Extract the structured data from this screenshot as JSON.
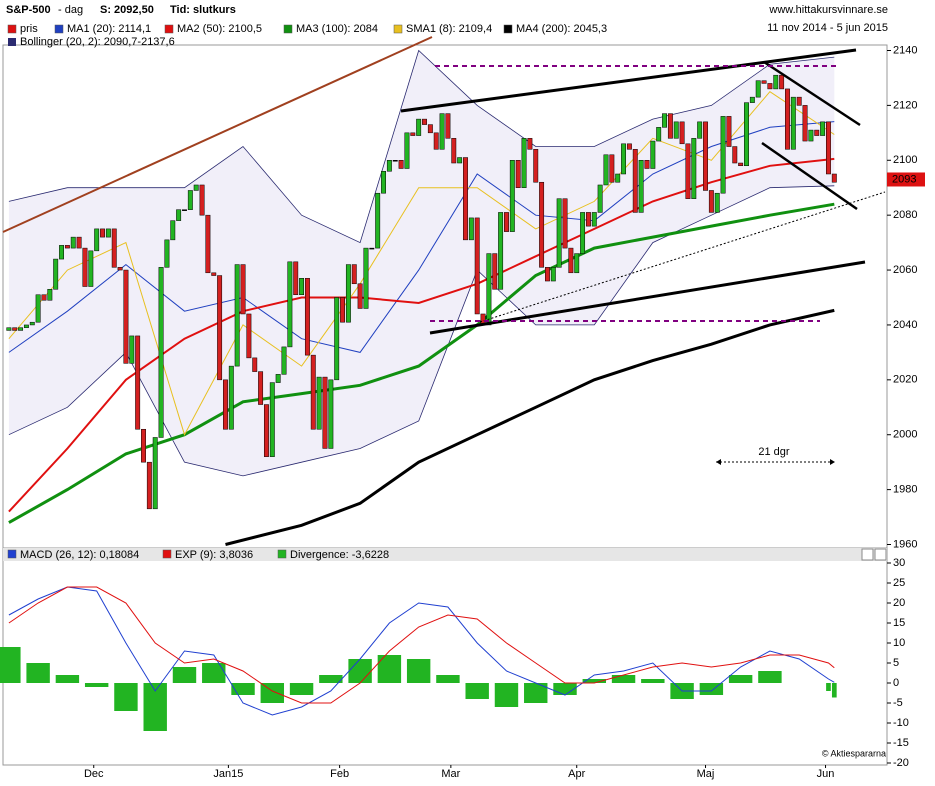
{
  "chart_data": [
    {
      "type": "candlestick",
      "title": "S&P-500",
      "interval": "- dag",
      "last_close": "S: 2092,50",
      "price_type": "Tid: slutkurs",
      "source": "www.hittakursvinnare.se",
      "date_range": "11 nov 2014 - 5 jun 2015",
      "xlim": [
        -1,
        150
      ],
      "ylim": [
        1958,
        2142
      ],
      "yticks": [
        1960,
        1980,
        2000,
        2020,
        2040,
        2060,
        2080,
        2100,
        2120,
        2140
      ],
      "last_value": 2093,
      "last_value_color": "#dd1111",
      "candles": {
        "name": "pris",
        "color": "#dd1111",
        "up_color": "#22b422",
        "down_color": "#d42020",
        "open": [
          2038,
          2039,
          2038,
          2039,
          2040,
          2041,
          2051,
          2049,
          2053,
          2064,
          2069,
          2068,
          2072,
          2068,
          2054,
          2067,
          2075,
          2072,
          2075,
          2061,
          2060,
          2026,
          2036,
          2002,
          1990,
          1973,
          1999,
          2061,
          2071,
          2078,
          2082,
          2082,
          2089,
          2091,
          2080,
          2059,
          2058,
          2020,
          2002,
          2025,
          2062,
          2044,
          2028,
          2023,
          2011,
          1992,
          2019,
          2022,
          2032,
          2063,
          2051,
          2057,
          2029,
          2002,
          2021,
          1995,
          2020,
          2050,
          2041,
          2062,
          2055,
          2046,
          2068,
          2068,
          2088,
          2096,
          2100,
          2100,
          2097,
          2110,
          2109,
          2115,
          2113,
          2110,
          2104,
          2117,
          2108,
          2099,
          2101,
          2071,
          2079,
          2044,
          2040,
          2066,
          2053,
          2081,
          2074,
          2100,
          2090,
          2108,
          2104,
          2092,
          2061,
          2056,
          2061,
          2086,
          2068,
          2059,
          2066,
          2081,
          2076,
          2081,
          2091,
          2102,
          2092,
          2095,
          2106,
          2104,
          2081,
          2100,
          2097,
          2107,
          2112,
          2117,
          2108,
          2114,
          2106,
          2086,
          2108,
          2114,
          2089,
          2081,
          2088,
          2116,
          2105,
          2099,
          2098,
          2121,
          2123,
          2129,
          2128,
          2126,
          2131,
          2126,
          2104,
          2123,
          2120,
          2107,
          2111,
          2109,
          2114,
          2095
        ],
        "close": [
          2039,
          2038,
          2039,
          2040,
          2041,
          2051,
          2049,
          2053,
          2064,
          2069,
          2068,
          2072,
          2068,
          2054,
          2067,
          2075,
          2072,
          2075,
          2061,
          2060,
          2026,
          2036,
          2002,
          1990,
          1973,
          1999,
          2061,
          2071,
          2078,
          2082,
          2082,
          2089,
          2091,
          2080,
          2059,
          2058,
          2020,
          2002,
          2025,
          2062,
          2044,
          2028,
          2023,
          2011,
          1992,
          2019,
          2022,
          2032,
          2063,
          2051,
          2057,
          2029,
          2002,
          2021,
          1995,
          2020,
          2050,
          2041,
          2062,
          2055,
          2046,
          2068,
          2068,
          2088,
          2096,
          2100,
          2100,
          2097,
          2110,
          2109,
          2115,
          2113,
          2110,
          2104,
          2117,
          2108,
          2099,
          2101,
          2071,
          2079,
          2044,
          2040,
          2066,
          2053,
          2081,
          2074,
          2100,
          2090,
          2108,
          2104,
          2092,
          2061,
          2056,
          2061,
          2086,
          2068,
          2059,
          2066,
          2081,
          2076,
          2081,
          2091,
          2102,
          2092,
          2095,
          2106,
          2104,
          2081,
          2100,
          2097,
          2107,
          2112,
          2117,
          2108,
          2114,
          2106,
          2086,
          2108,
          2114,
          2089,
          2081,
          2088,
          2116,
          2105,
          2099,
          2098,
          2121,
          2123,
          2129,
          2128,
          2126,
          2131,
          2126,
          2104,
          2123,
          2120,
          2107,
          2111,
          2109,
          2114,
          2095,
          2092
        ]
      },
      "bollinger": {
        "name": "Bollinger (20, 2): 2090,7-2137,6",
        "color": "#2a2a70",
        "fill": "#f1eff9",
        "x": [
          0,
          10,
          20,
          30,
          40,
          50,
          60,
          70,
          80,
          90,
          100,
          110,
          120,
          130,
          141
        ],
        "upper": [
          2085,
          2090,
          2090,
          2090,
          2105,
          2080,
          2070,
          2140,
          2120,
          2105,
          2105,
          2115,
          2120,
          2135,
          2137.6
        ],
        "lower": [
          2000,
          2010,
          2030,
          1990,
          1985,
          1990,
          1995,
          2005,
          2060,
          2040,
          2040,
          2070,
          2080,
          2090,
          2090.7
        ]
      },
      "series": [
        {
          "name": "MA1 (20): 2114,1",
          "color": "#2040c0",
          "width": 1,
          "x": [
            0,
            10,
            20,
            30,
            40,
            50,
            60,
            70,
            80,
            90,
            100,
            110,
            120,
            130,
            141
          ],
          "values": [
            2030,
            2045,
            2062,
            2045,
            2050,
            2035,
            2030,
            2060,
            2095,
            2080,
            2078,
            2095,
            2105,
            2112,
            2114.1
          ]
        },
        {
          "name": "MA2 (50): 2100,5",
          "color": "#e01010",
          "width": 2,
          "x": [
            0,
            10,
            20,
            30,
            40,
            50,
            60,
            70,
            80,
            90,
            100,
            110,
            120,
            130,
            141
          ],
          "values": [
            1972,
            1995,
            2020,
            2035,
            2045,
            2050,
            2050,
            2048,
            2055,
            2065,
            2075,
            2085,
            2092,
            2098,
            2100.5
          ]
        },
        {
          "name": "MA3 (100): 2084",
          "color": "#109010",
          "width": 3,
          "x": [
            0,
            10,
            20,
            30,
            40,
            50,
            60,
            70,
            80,
            90,
            100,
            110,
            120,
            130,
            141
          ],
          "values": [
            1968,
            1980,
            1993,
            2000,
            2012,
            2015,
            2018,
            2025,
            2040,
            2058,
            2068,
            2072,
            2076,
            2080,
            2084
          ]
        },
        {
          "name": "SMA1 (8): 2109,4",
          "color": "#e8c020",
          "width": 1,
          "x": [
            0,
            10,
            20,
            30,
            40,
            50,
            60,
            70,
            80,
            90,
            100,
            110,
            120,
            130,
            141
          ],
          "values": [
            2035,
            2060,
            2070,
            2000,
            2040,
            2025,
            2055,
            2090,
            2090,
            2075,
            2085,
            2108,
            2100,
            2125,
            2109.4
          ]
        },
        {
          "name": "MA4 (200): 2045,3",
          "color": "#000000",
          "width": 3,
          "x": [
            37,
            50,
            60,
            70,
            80,
            90,
            100,
            110,
            120,
            130,
            141
          ],
          "values": [
            1960,
            1967,
            1975,
            1990,
            2000,
            2010,
            2020,
            2027,
            2033,
            2040,
            2045.3
          ]
        }
      ],
      "annotation": "21 dgr"
    },
    {
      "type": "macd",
      "xlim": [
        -1,
        150
      ],
      "ylim": [
        -20,
        30
      ],
      "yticks": [
        -20,
        -15,
        -10,
        -5,
        0,
        5,
        10,
        15,
        20,
        25,
        30
      ],
      "xticks": [
        {
          "value": 14.5,
          "label": "Dec"
        },
        {
          "value": 37.5,
          "label": "Jan15"
        },
        {
          "value": 56.5,
          "label": "Feb"
        },
        {
          "value": 75.5,
          "label": "Mar"
        },
        {
          "value": 97,
          "label": "Apr"
        },
        {
          "value": 119,
          "label": "Maj"
        },
        {
          "value": 139.5,
          "label": "Jun"
        }
      ],
      "x": [
        0,
        5,
        10,
        15,
        20,
        25,
        30,
        35,
        40,
        45,
        50,
        55,
        60,
        65,
        70,
        75,
        80,
        85,
        90,
        95,
        100,
        105,
        110,
        115,
        120,
        125,
        130,
        135,
        140,
        141
      ],
      "series": [
        {
          "name": "MACD (26, 12): 0,18084",
          "color": "#2040d0",
          "values": [
            17,
            21,
            24,
            23,
            10,
            -2,
            8,
            7,
            -5,
            -8,
            -6,
            -2,
            6,
            15,
            20,
            19,
            10,
            3,
            0,
            -3,
            2,
            3,
            5,
            -2,
            -2,
            4,
            8,
            6,
            1,
            0.18084
          ]
        },
        {
          "name": "EXP (9): 3,8036",
          "color": "#e01010",
          "values": [
            15,
            20,
            24,
            24,
            20,
            10,
            5,
            6,
            3,
            -2,
            -5,
            -5,
            0,
            8,
            14,
            17,
            16,
            10,
            5,
            0,
            0,
            2,
            4,
            5,
            4,
            5,
            7,
            7,
            5,
            3.8036
          ]
        }
      ],
      "divergence": {
        "name": "Divergence: -3,6228",
        "color": "#22b422",
        "values": [
          9,
          5,
          2,
          -1,
          -7,
          -12,
          4,
          5,
          -3,
          -5,
          -3,
          2,
          6,
          7,
          6,
          2,
          -4,
          -6,
          -5,
          -3,
          1,
          2,
          1,
          -4,
          -3,
          2,
          3,
          0,
          -2,
          -3.6228
        ]
      },
      "note": "© Aktiespararna"
    }
  ]
}
